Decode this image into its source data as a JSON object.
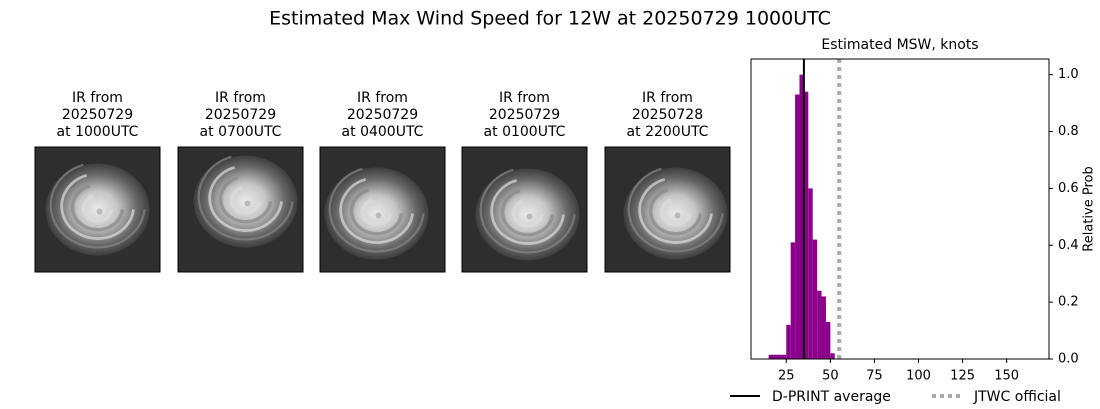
{
  "title": "Estimated Max Wind Speed for 12W at 20250729 1000UTC",
  "panels": [
    {
      "lines": [
        "IR from",
        "20250729",
        "at 1000UTC"
      ]
    },
    {
      "lines": [
        "IR from",
        "20250729",
        "at 0700UTC"
      ]
    },
    {
      "lines": [
        "IR from",
        "20250729",
        "at 0400UTC"
      ]
    },
    {
      "lines": [
        "IR from",
        "20250729",
        "at 0100UTC"
      ]
    },
    {
      "lines": [
        "IR from",
        "20250728",
        "at 2200UTC"
      ]
    }
  ],
  "chart_data": {
    "type": "histogram",
    "title": "Estimated MSW, knots",
    "bins": [
      15,
      17.5,
      20,
      22.5,
      25,
      27.5,
      30,
      32.5,
      35,
      37.5,
      40,
      42.5,
      45,
      47.5,
      50,
      52.5
    ],
    "values": [
      0.015,
      0.015,
      0.015,
      0.015,
      0.12,
      0.41,
      0.93,
      1.0,
      0.94,
      0.6,
      0.42,
      0.24,
      0.22,
      0.13,
      0.02
    ],
    "color": "#8b008b",
    "xlim": [
      5,
      174
    ],
    "ylim": [
      0,
      1.055
    ],
    "xticks": [
      25,
      50,
      75,
      100,
      125,
      150
    ],
    "yticks": [
      {
        "value": 0,
        "label": "0.0"
      },
      0.2,
      0.4,
      0.6,
      0.8,
      {
        "value": 1,
        "label": "1.0"
      }
    ],
    "ylabel": "Relative Prob",
    "lines": [
      {
        "name": "D-PRINT average",
        "value": 35,
        "color": "#000000",
        "style": "solid"
      },
      {
        "name": "JTWC official",
        "value": 55,
        "color": "#aaaaaa",
        "style": "dotted"
      }
    ]
  }
}
